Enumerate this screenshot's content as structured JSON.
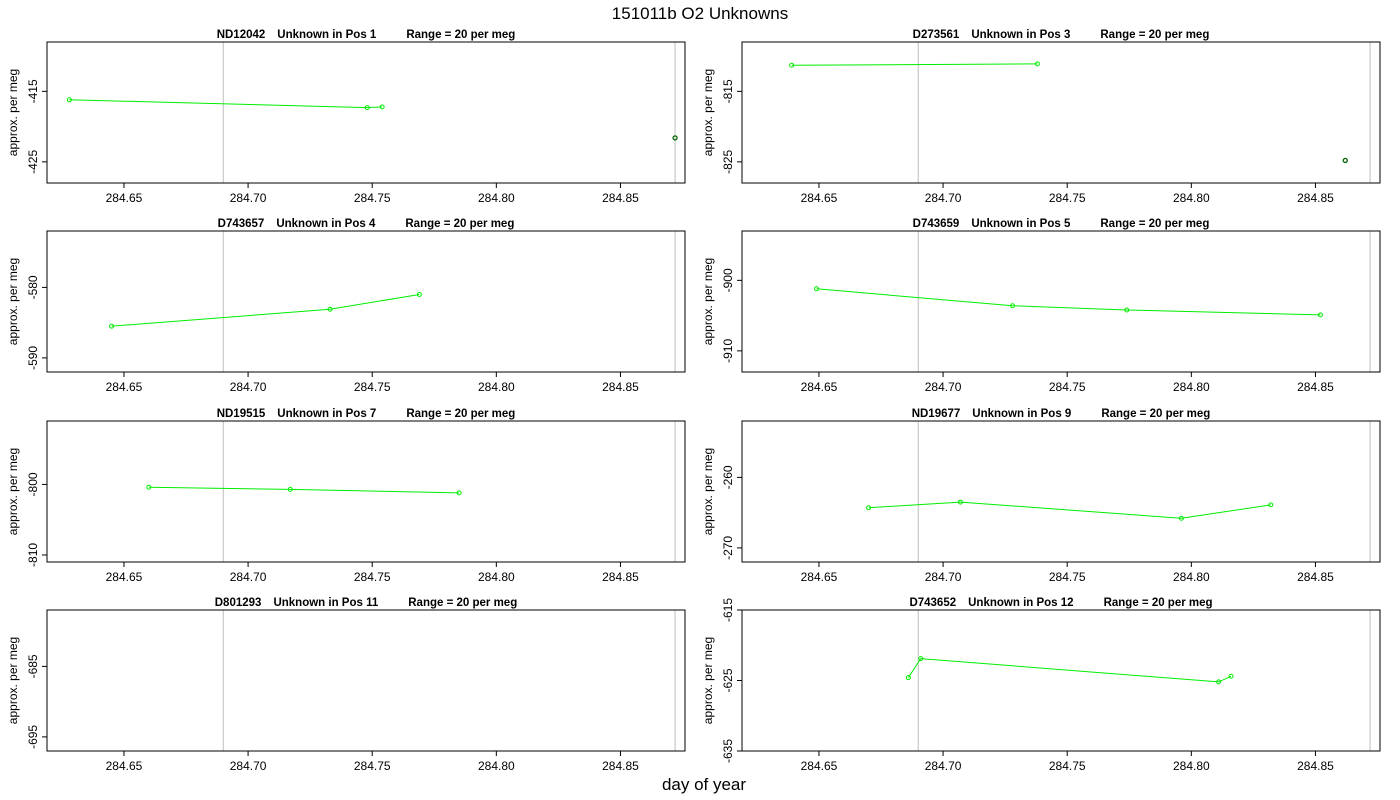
{
  "title": "151011b  O2 Unknowns",
  "xlabel": "day of year",
  "colors": {
    "series": "#00ee00",
    "outlier": "#006400",
    "refline": "#bebebe",
    "axis": "#000000"
  },
  "chart_data": [
    {
      "type": "line",
      "title": {
        "id": "ND12042",
        "desc": "Unknown in Pos 1",
        "range": "Range = 20 per meg"
      },
      "ylabel": "approx. per meg",
      "xlim": [
        284.619,
        284.876
      ],
      "ylim": [
        -428,
        -408
      ],
      "xticks": [
        "284.65",
        "284.70",
        "284.75",
        "284.80",
        "284.85"
      ],
      "yticks": [
        -415,
        -425
      ],
      "vlines": [
        284.69,
        284.872
      ],
      "x": [
        284.628,
        284.748,
        284.754
      ],
      "y": [
        -416.2,
        -417.3,
        -417.2
      ],
      "extra_points": [
        {
          "x": 284.872,
          "y": -421.6
        }
      ]
    },
    {
      "type": "line",
      "title": {
        "id": "D273561",
        "desc": "Unknown in Pos 3",
        "range": "Range = 20 per meg"
      },
      "ylabel": "approx. per meg",
      "xlim": [
        284.619,
        284.876
      ],
      "ylim": [
        -828,
        -808
      ],
      "xticks": [
        "284.65",
        "284.70",
        "284.75",
        "284.80",
        "284.85"
      ],
      "yticks": [
        -815,
        -825
      ],
      "vlines": [
        284.69,
        284.872
      ],
      "x": [
        284.639,
        284.738
      ],
      "y": [
        -811.3,
        -811.1
      ],
      "extra_points": [
        {
          "x": 284.862,
          "y": -824.8
        }
      ]
    },
    {
      "type": "line",
      "title": {
        "id": "D743657",
        "desc": "Unknown in Pos 4",
        "range": "Range = 20 per meg"
      },
      "ylabel": "approx. per meg",
      "xlim": [
        284.619,
        284.876
      ],
      "ylim": [
        -592,
        -572
      ],
      "xticks": [
        "284.65",
        "284.70",
        "284.75",
        "284.80",
        "284.85"
      ],
      "yticks": [
        -580,
        -590
      ],
      "vlines": [
        284.69,
        284.872
      ],
      "x": [
        284.645,
        284.733,
        284.769
      ],
      "y": [
        -585.5,
        -583.1,
        -581.0
      ],
      "extra_points": []
    },
    {
      "type": "line",
      "title": {
        "id": "D743659",
        "desc": "Unknown in Pos 5",
        "range": "Range = 20 per meg"
      },
      "ylabel": "approx. per meg",
      "xlim": [
        284.619,
        284.876
      ],
      "ylim": [
        -913,
        -893
      ],
      "xticks": [
        "284.65",
        "284.70",
        "284.75",
        "284.80",
        "284.85"
      ],
      "yticks": [
        -900,
        -910
      ],
      "vlines": [
        284.69,
        284.872
      ],
      "x": [
        284.649,
        284.728,
        284.774,
        284.852
      ],
      "y": [
        -901.2,
        -903.6,
        -904.2,
        -904.9
      ],
      "extra_points": []
    },
    {
      "type": "line",
      "title": {
        "id": "ND19515",
        "desc": "Unknown in Pos 7",
        "range": "Range = 20 per meg"
      },
      "ylabel": "approx. per meg",
      "xlim": [
        284.619,
        284.876
      ],
      "ylim": [
        -811,
        -791
      ],
      "xticks": [
        "284.65",
        "284.70",
        "284.75",
        "284.80",
        "284.85"
      ],
      "yticks": [
        -800,
        -810
      ],
      "vlines": [
        284.69,
        284.872
      ],
      "x": [
        284.66,
        284.717,
        284.785
      ],
      "y": [
        -800.4,
        -800.7,
        -801.2
      ],
      "extra_points": []
    },
    {
      "type": "line",
      "title": {
        "id": "ND19677",
        "desc": "Unknown in Pos 9",
        "range": "Range = 20 per meg"
      },
      "ylabel": "approx. per meg",
      "xlim": [
        284.619,
        284.876
      ],
      "ylim": [
        -272,
        -252
      ],
      "xticks": [
        "284.65",
        "284.70",
        "284.75",
        "284.80",
        "284.85"
      ],
      "yticks": [
        -260,
        -270
      ],
      "vlines": [
        284.69,
        284.872
      ],
      "x": [
        284.67,
        284.707,
        284.796,
        284.832
      ],
      "y": [
        -264.3,
        -263.5,
        -265.8,
        -263.9
      ],
      "extra_points": []
    },
    {
      "type": "line",
      "title": {
        "id": "D801293",
        "desc": "Unknown in Pos 11",
        "range": "Range = 20 per meg"
      },
      "ylabel": "approx. per meg",
      "xlim": [
        284.619,
        284.876
      ],
      "ylim": [
        -697,
        -677
      ],
      "xticks": [
        "284.65",
        "284.70",
        "284.75",
        "284.80",
        "284.85"
      ],
      "yticks": [
        -685,
        -695
      ],
      "vlines": [
        284.69,
        284.872
      ],
      "x": [],
      "y": [],
      "extra_points": []
    },
    {
      "type": "line",
      "title": {
        "id": "D743652",
        "desc": "Unknown in Pos 12",
        "range": "Range = 20 per meg"
      },
      "ylabel": "approx. per meg",
      "xlim": [
        284.619,
        284.876
      ],
      "ylim": [
        -635,
        -615
      ],
      "xticks": [
        "284.65",
        "284.70",
        "284.75",
        "284.80",
        "284.85"
      ],
      "yticks": [
        -615,
        -625,
        -635
      ],
      "vlines": [
        284.69,
        284.872
      ],
      "x": [
        284.686,
        284.691,
        284.811,
        284.816
      ],
      "y": [
        -624.6,
        -621.9,
        -625.2,
        -624.4
      ],
      "extra_points": []
    }
  ]
}
